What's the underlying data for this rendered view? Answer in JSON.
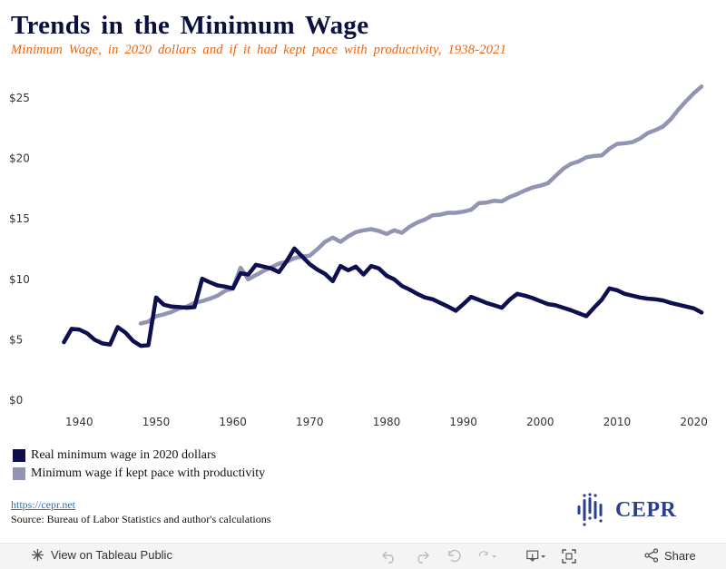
{
  "title": "Trends in the Minimum Wage",
  "subtitle": "Minimum Wage, in 2020 dollars and if it had kept pace with productivity, 1938-2021",
  "legend": [
    {
      "label": "Real minimum wage in 2020 dollars",
      "color": "#0d0f4f"
    },
    {
      "label": "Minimum wage if kept pace with productivity",
      "color": "#9294b3"
    }
  ],
  "footer": {
    "link": "https://cepr.net",
    "source": "Source: Bureau of Labor Statistics and author's calculations",
    "logo": "CEPR"
  },
  "toolbar": {
    "view_label": "View on Tableau Public",
    "share_label": "Share"
  },
  "chart_data": {
    "type": "line",
    "title": "Trends in the Minimum Wage",
    "subtitle": "Minimum Wage, in 2020 dollars and if it had kept pace with productivity, 1938-2021",
    "xlabel": "",
    "ylabel": "",
    "xlim": [
      1935,
      2023
    ],
    "ylim": [
      0,
      26.5
    ],
    "x_ticks": [
      1940,
      1950,
      1960,
      1970,
      1980,
      1990,
      2000,
      2010,
      2020
    ],
    "y_ticks": [
      0,
      5,
      10,
      15,
      20,
      25
    ],
    "y_tick_labels": [
      "$0",
      "$5",
      "$10",
      "$15",
      "$20",
      "$25"
    ],
    "grid": false,
    "legend_position": "bottom-left",
    "series": [
      {
        "name": "Real minimum wage in 2020 dollars",
        "color": "#0d0f4f",
        "points": [
          [
            1938,
            4.8
          ],
          [
            1939,
            5.9
          ],
          [
            1940,
            5.85
          ],
          [
            1941,
            5.55
          ],
          [
            1942,
            5.0
          ],
          [
            1943,
            4.7
          ],
          [
            1944,
            4.6
          ],
          [
            1945,
            6.05
          ],
          [
            1946,
            5.6
          ],
          [
            1947,
            4.9
          ],
          [
            1948,
            4.5
          ],
          [
            1949,
            4.55
          ],
          [
            1950,
            8.5
          ],
          [
            1951,
            7.9
          ],
          [
            1952,
            7.75
          ],
          [
            1953,
            7.7
          ],
          [
            1954,
            7.65
          ],
          [
            1955,
            7.7
          ],
          [
            1956,
            10.05
          ],
          [
            1957,
            9.75
          ],
          [
            1958,
            9.5
          ],
          [
            1959,
            9.4
          ],
          [
            1960,
            9.25
          ],
          [
            1961,
            10.5
          ],
          [
            1962,
            10.4
          ],
          [
            1963,
            11.2
          ],
          [
            1964,
            11.05
          ],
          [
            1965,
            10.9
          ],
          [
            1966,
            10.6
          ],
          [
            1967,
            11.5
          ],
          [
            1968,
            12.55
          ],
          [
            1969,
            11.9
          ],
          [
            1970,
            11.25
          ],
          [
            1971,
            10.8
          ],
          [
            1972,
            10.45
          ],
          [
            1973,
            9.85
          ],
          [
            1974,
            11.1
          ],
          [
            1975,
            10.75
          ],
          [
            1976,
            11.05
          ],
          [
            1977,
            10.4
          ],
          [
            1978,
            11.1
          ],
          [
            1979,
            10.9
          ],
          [
            1980,
            10.3
          ],
          [
            1981,
            10.0
          ],
          [
            1982,
            9.45
          ],
          [
            1983,
            9.15
          ],
          [
            1984,
            8.8
          ],
          [
            1985,
            8.5
          ],
          [
            1986,
            8.35
          ],
          [
            1987,
            8.05
          ],
          [
            1988,
            7.75
          ],
          [
            1989,
            7.4
          ],
          [
            1990,
            7.95
          ],
          [
            1991,
            8.55
          ],
          [
            1992,
            8.3
          ],
          [
            1993,
            8.05
          ],
          [
            1994,
            7.85
          ],
          [
            1995,
            7.65
          ],
          [
            1996,
            8.3
          ],
          [
            1997,
            8.8
          ],
          [
            1998,
            8.65
          ],
          [
            1999,
            8.45
          ],
          [
            2000,
            8.2
          ],
          [
            2001,
            7.95
          ],
          [
            2002,
            7.85
          ],
          [
            2003,
            7.65
          ],
          [
            2004,
            7.45
          ],
          [
            2005,
            7.2
          ],
          [
            2006,
            6.95
          ],
          [
            2007,
            7.65
          ],
          [
            2008,
            8.3
          ],
          [
            2009,
            9.25
          ],
          [
            2010,
            9.1
          ],
          [
            2011,
            8.8
          ],
          [
            2012,
            8.65
          ],
          [
            2013,
            8.5
          ],
          [
            2014,
            8.4
          ],
          [
            2015,
            8.35
          ],
          [
            2016,
            8.25
          ],
          [
            2017,
            8.05
          ],
          [
            2018,
            7.9
          ],
          [
            2019,
            7.75
          ],
          [
            2020,
            7.6
          ],
          [
            2021,
            7.25
          ]
        ]
      },
      {
        "name": "Minimum wage if kept pace with productivity",
        "color": "#9294b3",
        "points": [
          [
            1948,
            6.35
          ],
          [
            1949,
            6.5
          ],
          [
            1950,
            6.95
          ],
          [
            1951,
            7.1
          ],
          [
            1952,
            7.3
          ],
          [
            1953,
            7.6
          ],
          [
            1954,
            7.75
          ],
          [
            1955,
            8.05
          ],
          [
            1956,
            8.2
          ],
          [
            1957,
            8.4
          ],
          [
            1958,
            8.65
          ],
          [
            1959,
            9.05
          ],
          [
            1960,
            9.25
          ],
          [
            1961,
            10.95
          ],
          [
            1962,
            10.0
          ],
          [
            1963,
            10.35
          ],
          [
            1964,
            10.7
          ],
          [
            1965,
            11.0
          ],
          [
            1966,
            11.3
          ],
          [
            1967,
            11.45
          ],
          [
            1968,
            11.75
          ],
          [
            1969,
            11.9
          ],
          [
            1970,
            11.95
          ],
          [
            1971,
            12.5
          ],
          [
            1972,
            13.1
          ],
          [
            1973,
            13.45
          ],
          [
            1974,
            13.1
          ],
          [
            1975,
            13.55
          ],
          [
            1976,
            13.9
          ],
          [
            1977,
            14.05
          ],
          [
            1978,
            14.15
          ],
          [
            1979,
            14.0
          ],
          [
            1980,
            13.75
          ],
          [
            1981,
            14.05
          ],
          [
            1982,
            13.85
          ],
          [
            1983,
            14.35
          ],
          [
            1984,
            14.7
          ],
          [
            1985,
            14.95
          ],
          [
            1986,
            15.3
          ],
          [
            1987,
            15.35
          ],
          [
            1988,
            15.5
          ],
          [
            1989,
            15.5
          ],
          [
            1990,
            15.6
          ],
          [
            1991,
            15.75
          ],
          [
            1992,
            16.3
          ],
          [
            1993,
            16.35
          ],
          [
            1994,
            16.5
          ],
          [
            1995,
            16.45
          ],
          [
            1996,
            16.8
          ],
          [
            1997,
            17.05
          ],
          [
            1998,
            17.35
          ],
          [
            1999,
            17.6
          ],
          [
            2000,
            17.75
          ],
          [
            2001,
            17.95
          ],
          [
            2002,
            18.55
          ],
          [
            2003,
            19.15
          ],
          [
            2004,
            19.55
          ],
          [
            2005,
            19.75
          ],
          [
            2006,
            20.1
          ],
          [
            2007,
            20.2
          ],
          [
            2008,
            20.25
          ],
          [
            2009,
            20.8
          ],
          [
            2010,
            21.2
          ],
          [
            2011,
            21.25
          ],
          [
            2012,
            21.35
          ],
          [
            2013,
            21.65
          ],
          [
            2014,
            22.1
          ],
          [
            2015,
            22.35
          ],
          [
            2016,
            22.65
          ],
          [
            2017,
            23.25
          ],
          [
            2018,
            24.05
          ],
          [
            2019,
            24.75
          ],
          [
            2020,
            25.4
          ],
          [
            2021,
            25.95
          ]
        ]
      }
    ]
  }
}
